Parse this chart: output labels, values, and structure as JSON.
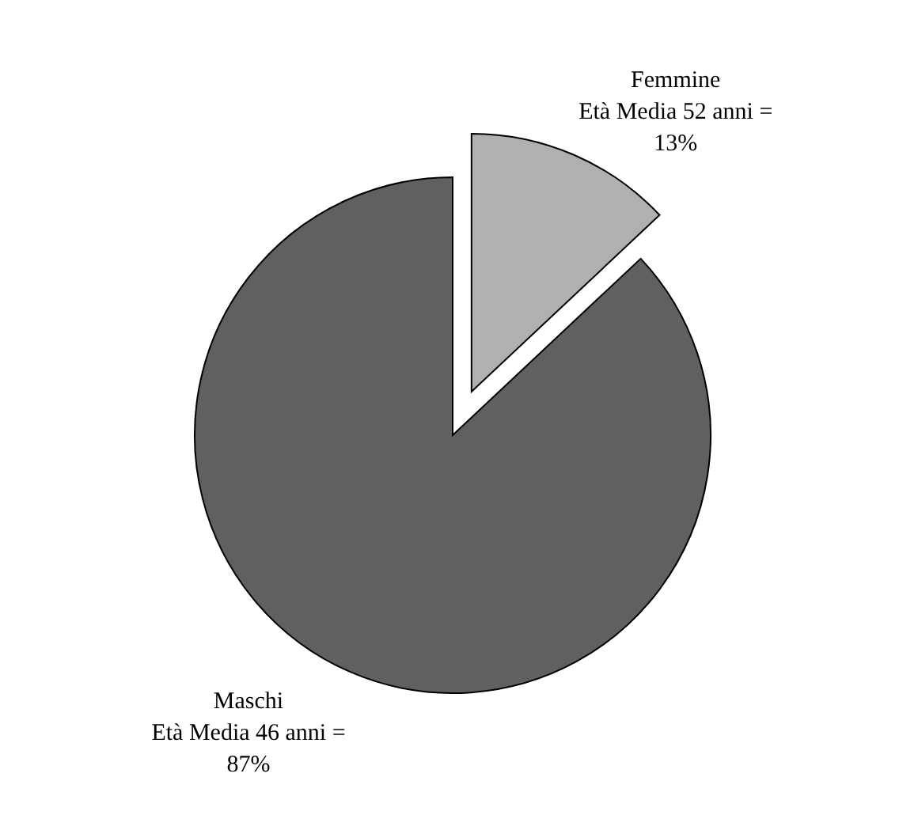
{
  "chart_data": {
    "type": "pie",
    "categories": [
      "Femmine Età Media 52 anni =",
      "Maschi Età Media 46 anni ="
    ],
    "values": [
      13,
      87
    ],
    "value_labels": [
      "13%",
      "87%"
    ],
    "colors": [
      "#b0b0b0",
      "#606060"
    ],
    "legend": false
  }
}
